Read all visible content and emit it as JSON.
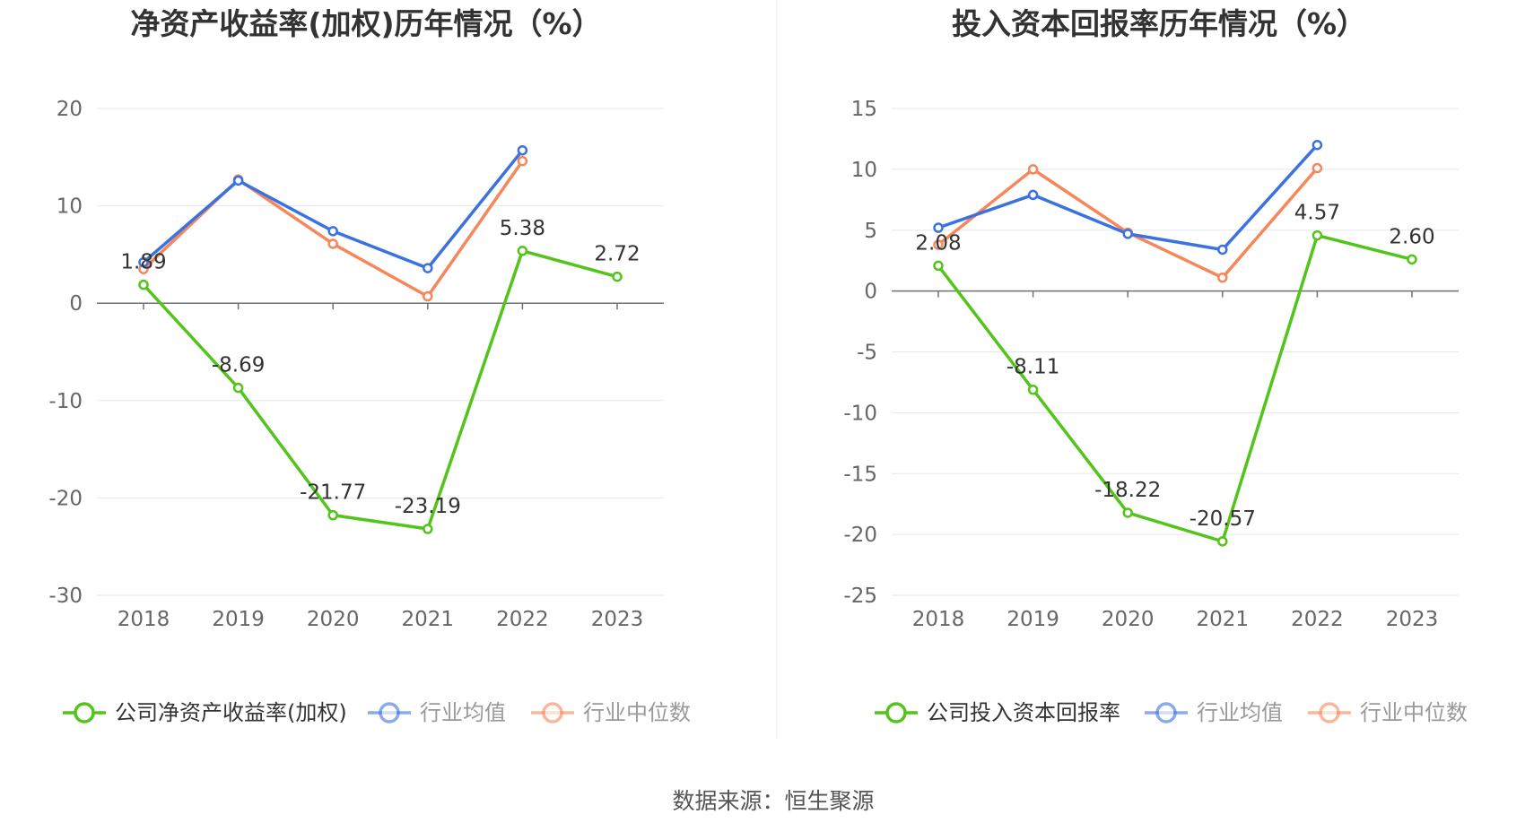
{
  "chart_data": [
    {
      "type": "line",
      "title": "净资产收益率(加权)历年情况（%）",
      "categories": [
        "2018",
        "2019",
        "2020",
        "2021",
        "2022",
        "2023"
      ],
      "ylim": [
        -30,
        20
      ],
      "yticks": [
        20,
        10,
        0,
        -10,
        -20,
        -30
      ],
      "grid": true,
      "legend_position": "bottom",
      "series": [
        {
          "name": "公司净资产收益率(加权)",
          "color": "#52c41a",
          "values": [
            1.89,
            -8.69,
            -21.77,
            -23.19,
            5.38,
            2.72
          ],
          "labels": [
            "1.89",
            "-8.69",
            "-21.77",
            "-23.19",
            "5.38",
            "2.72"
          ]
        },
        {
          "name": "行业均值",
          "color": "#3b72e0",
          "values": [
            4.2,
            12.6,
            7.4,
            3.6,
            15.7,
            null
          ]
        },
        {
          "name": "行业中位数",
          "color": "#f5875a",
          "values": [
            3.5,
            12.7,
            6.1,
            0.7,
            14.6,
            null
          ]
        }
      ]
    },
    {
      "type": "line",
      "title": "投入资本回报率历年情况（%）",
      "categories": [
        "2018",
        "2019",
        "2020",
        "2021",
        "2022",
        "2023"
      ],
      "ylim": [
        -25,
        15
      ],
      "yticks": [
        15,
        10,
        5,
        0,
        -5,
        -10,
        -15,
        -20,
        -25
      ],
      "grid": true,
      "legend_position": "bottom",
      "series": [
        {
          "name": "公司投入资本回报率",
          "color": "#52c41a",
          "values": [
            2.08,
            -8.11,
            -18.22,
            -20.57,
            4.57,
            2.6
          ],
          "labels": [
            "2.08",
            "-8.11",
            "-18.22",
            "-20.57",
            "4.57",
            "2.60"
          ]
        },
        {
          "name": "行业均值",
          "color": "#3b72e0",
          "values": [
            5.2,
            7.9,
            4.7,
            3.4,
            12.0,
            null
          ]
        },
        {
          "name": "行业中位数",
          "color": "#f5875a",
          "values": [
            3.8,
            10.0,
            4.8,
            1.1,
            10.1,
            null
          ]
        }
      ]
    }
  ],
  "footer": {
    "source": "数据来源：恒生聚源"
  }
}
